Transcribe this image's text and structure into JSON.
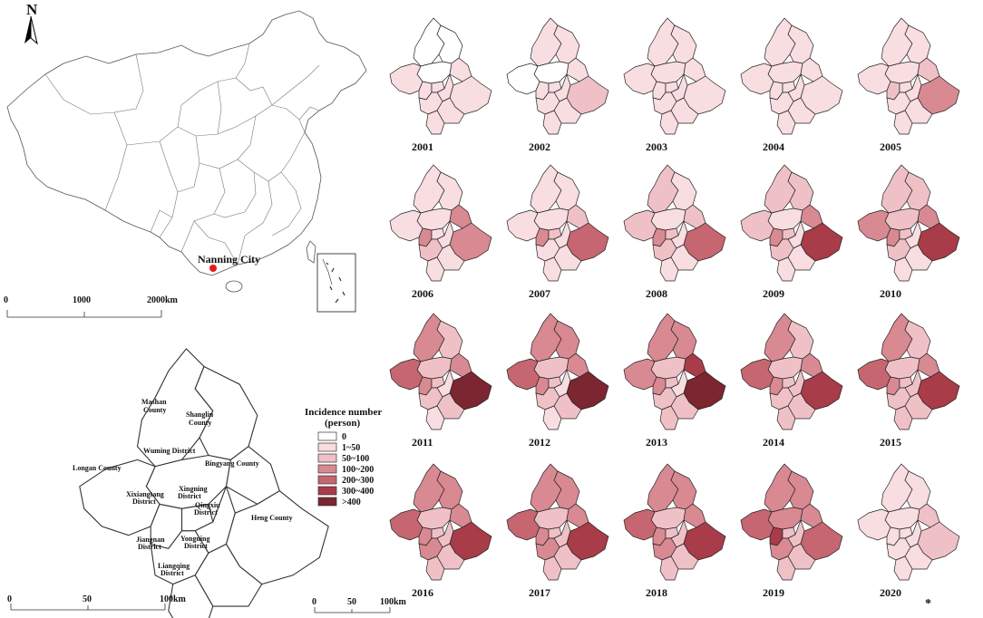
{
  "north_arrow": {
    "label": "N"
  },
  "china_map": {
    "city_label": "Nanning City",
    "city_color": "#e11b1b",
    "scale": {
      "ticks": [
        "0",
        "1000",
        "2000km"
      ]
    }
  },
  "nanning_map": {
    "districts": [
      {
        "id": "mashan",
        "label": "Mashan County"
      },
      {
        "id": "shanglin",
        "label": "Shanglin County"
      },
      {
        "id": "wuming",
        "label": "Wuming District"
      },
      {
        "id": "binyang",
        "label": "Bingyang County"
      },
      {
        "id": "longan",
        "label": "Longan County"
      },
      {
        "id": "xixiangtang",
        "label": "Xixiangtang District"
      },
      {
        "id": "xingning",
        "label": "Xingning District"
      },
      {
        "id": "qingxiu",
        "label": "Qingxiu District"
      },
      {
        "id": "heng",
        "label": "Heng County"
      },
      {
        "id": "jiangnan",
        "label": "Jiangnan District"
      },
      {
        "id": "yongning",
        "label": "Yongning District"
      },
      {
        "id": "liangqing",
        "label": "Liangqing District"
      }
    ],
    "scale": {
      "ticks": [
        "0",
        "50",
        "100km"
      ]
    }
  },
  "legend": {
    "title_line1": "Incidence number",
    "title_line2": "(person)",
    "classes": [
      {
        "label": "0",
        "color": "#ffffff"
      },
      {
        "label": "1~50",
        "color": "#f8dde1"
      },
      {
        "label": "50~100",
        "color": "#efc1c7"
      },
      {
        "label": "100~200",
        "color": "#d88992"
      },
      {
        "label": "200~300",
        "color": "#c66670"
      },
      {
        "label": "300~400",
        "color": "#a83c48"
      },
      {
        "label": ">400",
        "color": "#7b2630"
      }
    ]
  },
  "small_scale": {
    "ticks": [
      "0",
      "50",
      "100km"
    ]
  },
  "note": "*",
  "district_order": [
    "mashan",
    "shanglin",
    "wuming",
    "binyang",
    "longan",
    "xixiangtang",
    "xingning",
    "qingxiu",
    "heng",
    "jiangnan",
    "yongning",
    "liangqing"
  ],
  "years": [
    {
      "year": "2001",
      "classes": [
        0,
        0,
        0,
        1,
        1,
        1,
        1,
        1,
        1,
        1,
        1,
        1
      ]
    },
    {
      "year": "2002",
      "classes": [
        1,
        1,
        0,
        1,
        0,
        1,
        1,
        1,
        2,
        1,
        1,
        1
      ]
    },
    {
      "year": "2003",
      "classes": [
        1,
        1,
        1,
        1,
        1,
        1,
        1,
        1,
        1,
        1,
        1,
        1
      ]
    },
    {
      "year": "2004",
      "classes": [
        1,
        1,
        1,
        1,
        1,
        1,
        1,
        1,
        1,
        1,
        1,
        1
      ]
    },
    {
      "year": "2005",
      "classes": [
        1,
        1,
        1,
        2,
        1,
        2,
        1,
        1,
        3,
        1,
        1,
        1
      ]
    },
    {
      "year": "2006",
      "classes": [
        1,
        1,
        1,
        3,
        1,
        3,
        1,
        1,
        3,
        2,
        1,
        1
      ]
    },
    {
      "year": "2007",
      "classes": [
        1,
        1,
        1,
        2,
        1,
        3,
        2,
        1,
        4,
        1,
        1,
        1
      ]
    },
    {
      "year": "2008",
      "classes": [
        2,
        1,
        1,
        2,
        2,
        3,
        2,
        1,
        4,
        2,
        1,
        1
      ]
    },
    {
      "year": "2009",
      "classes": [
        2,
        2,
        1,
        3,
        2,
        3,
        2,
        1,
        5,
        2,
        1,
        1
      ]
    },
    {
      "year": "2010",
      "classes": [
        2,
        2,
        2,
        3,
        3,
        3,
        2,
        1,
        5,
        2,
        1,
        1
      ]
    },
    {
      "year": "2011",
      "classes": [
        3,
        2,
        2,
        3,
        4,
        3,
        2,
        1,
        6,
        2,
        2,
        1
      ]
    },
    {
      "year": "2012",
      "classes": [
        3,
        3,
        2,
        3,
        4,
        3,
        2,
        1,
        6,
        2,
        2,
        1
      ]
    },
    {
      "year": "2013",
      "classes": [
        3,
        3,
        2,
        5,
        3,
        3,
        2,
        1,
        6,
        2,
        2,
        2
      ]
    },
    {
      "year": "2014",
      "classes": [
        3,
        2,
        2,
        3,
        4,
        3,
        2,
        2,
        5,
        2,
        2,
        2
      ]
    },
    {
      "year": "2015",
      "classes": [
        3,
        2,
        2,
        3,
        4,
        3,
        2,
        2,
        5,
        2,
        2,
        2
      ]
    },
    {
      "year": "2016",
      "classes": [
        3,
        3,
        2,
        3,
        4,
        3,
        2,
        2,
        5,
        3,
        2,
        2
      ]
    },
    {
      "year": "2017",
      "classes": [
        3,
        3,
        2,
        3,
        4,
        3,
        2,
        2,
        5,
        3,
        2,
        2
      ]
    },
    {
      "year": "2018",
      "classes": [
        3,
        3,
        2,
        3,
        4,
        3,
        2,
        2,
        5,
        3,
        2,
        2
      ]
    },
    {
      "year": "2019",
      "classes": [
        3,
        3,
        3,
        3,
        4,
        5,
        2,
        2,
        4,
        3,
        2,
        2
      ]
    },
    {
      "year": "2020",
      "classes": [
        1,
        1,
        1,
        2,
        1,
        1,
        1,
        1,
        2,
        1,
        1,
        1
      ]
    }
  ]
}
